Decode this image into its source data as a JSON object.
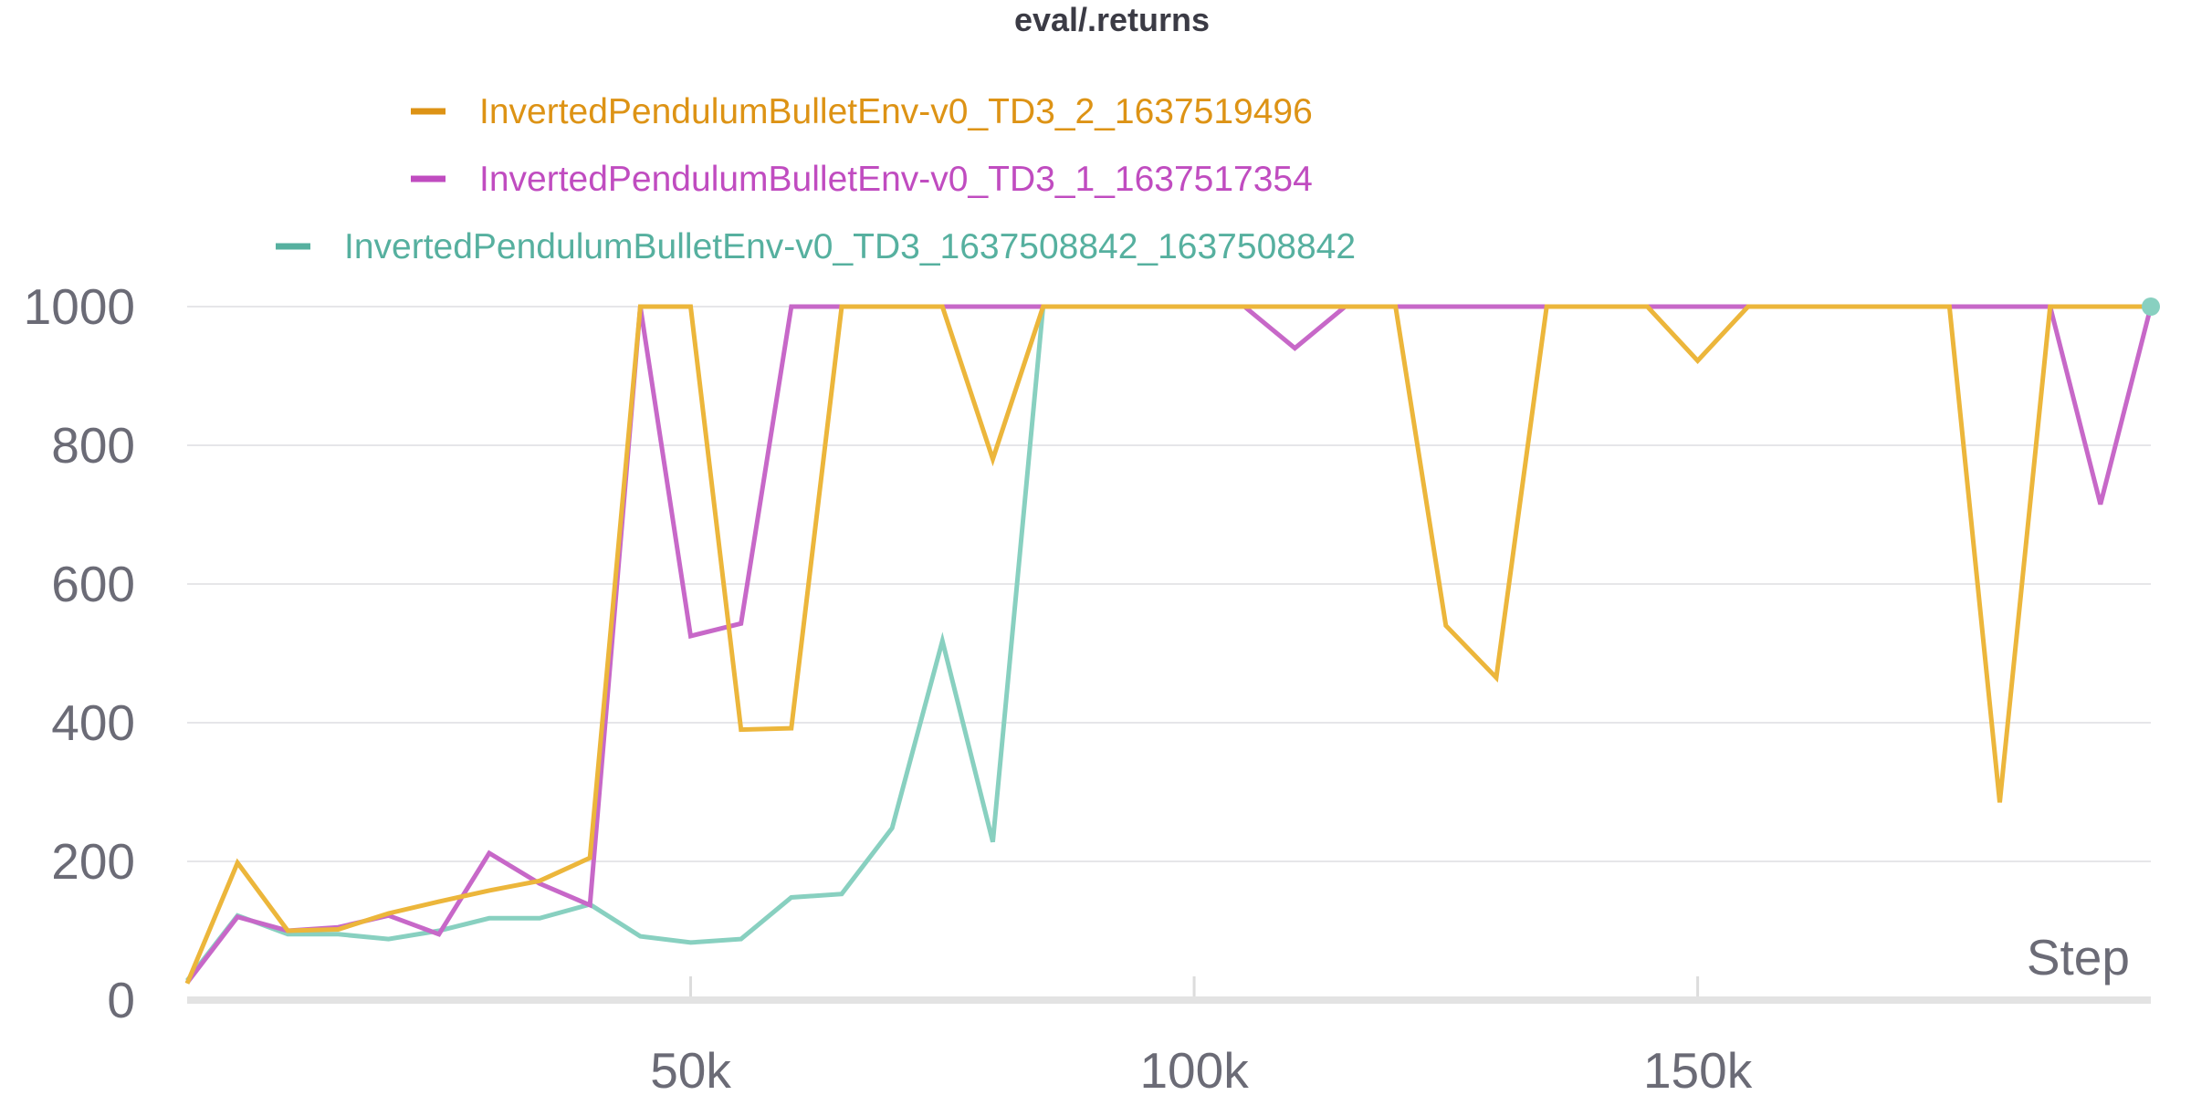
{
  "chart_data": {
    "type": "line",
    "title": "eval/.returns",
    "xlabel": "Step",
    "ylabel": "",
    "xlim": [
      0,
      195000
    ],
    "ylim": [
      0,
      1000
    ],
    "x_ticks": [
      50000,
      100000,
      150000
    ],
    "x_tick_labels": [
      "50k",
      "100k",
      "150k"
    ],
    "y_ticks": [
      0,
      200,
      400,
      600,
      800,
      1000
    ],
    "y_tick_labels": [
      "0",
      "200",
      "400",
      "600",
      "800",
      "1000"
    ],
    "grid": true,
    "legend_position": "top",
    "x": [
      0,
      5000,
      10000,
      15000,
      20000,
      25000,
      30000,
      35000,
      40000,
      45000,
      50000,
      55000,
      60000,
      65000,
      70000,
      75000,
      80000,
      85000,
      90000,
      95000,
      100000,
      105000,
      110000,
      115000,
      120000,
      125000,
      130000,
      135000,
      140000,
      145000,
      150000,
      155000,
      160000,
      165000,
      170000,
      175000,
      180000,
      185000,
      190000,
      195000
    ],
    "series": [
      {
        "name": "InvertedPendulumBulletEnv-v0_TD3_1637508842_1637508842",
        "color": "#88d0c0",
        "legend_color": "#56b09f",
        "values": [
          28,
          122,
          95,
          95,
          88,
          100,
          118,
          118,
          138,
          92,
          83,
          88,
          148,
          153,
          248,
          518,
          228,
          1000,
          1000,
          1000,
          1000,
          1000,
          1000,
          1000,
          1000,
          1000,
          1000,
          1000,
          1000,
          1000,
          1000,
          1000,
          1000,
          1000,
          1000,
          1000,
          1000,
          1000,
          1000,
          1000
        ]
      },
      {
        "name": "InvertedPendulumBulletEnv-v0_TD3_1_1637517354",
        "color": "#c768c8",
        "legend_color": "#c04cc0",
        "values": [
          25,
          120,
          100,
          105,
          122,
          95,
          212,
          168,
          137,
          1000,
          525,
          543,
          1000,
          1000,
          1000,
          1000,
          1000,
          1000,
          1000,
          1000,
          1000,
          1000,
          940,
          1000,
          1000,
          1000,
          1000,
          1000,
          1000,
          1000,
          1000,
          1000,
          1000,
          1000,
          1000,
          1000,
          1000,
          1000,
          715,
          1000
        ]
      },
      {
        "name": "InvertedPendulumBulletEnv-v0_TD3_2_1637519496",
        "color": "#ecb63b",
        "legend_color": "#dd9315",
        "values": [
          24,
          198,
          100,
          102,
          125,
          142,
          158,
          172,
          205,
          1000,
          1000,
          390,
          392,
          1000,
          1000,
          1000,
          780,
          1000,
          1000,
          1000,
          1000,
          1000,
          1000,
          1000,
          1000,
          540,
          465,
          1000,
          1000,
          1000,
          922,
          1000,
          1000,
          1000,
          1000,
          1000,
          285,
          1000,
          1000,
          1000
        ]
      }
    ]
  }
}
